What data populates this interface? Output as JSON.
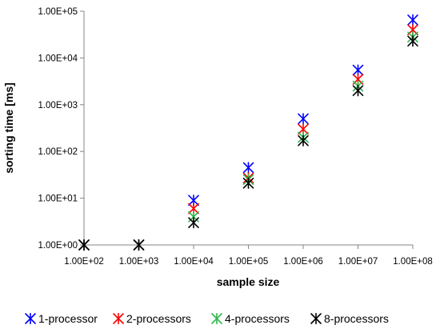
{
  "chart_data": {
    "type": "scatter",
    "xlabel": "sample size",
    "ylabel": "sorting time [ms]",
    "x_scale": "log",
    "y_scale": "log",
    "xlim": [
      100,
      100000000
    ],
    "ylim": [
      1,
      100000
    ],
    "x_ticks": [
      100,
      1000,
      10000,
      100000,
      1000000,
      10000000,
      100000000
    ],
    "x_tick_labels": [
      "1.00E+02",
      "1.00E+03",
      "1.00E+04",
      "1.00E+05",
      "1.00E+06",
      "1.00E+07",
      "1.00E+08"
    ],
    "y_ticks": [
      1,
      10,
      100,
      1000,
      10000,
      100000
    ],
    "y_tick_labels": [
      "1.00E+00",
      "1.00E+01",
      "1.00E+02",
      "1.00E+03",
      "1.00E+04",
      "1.00E+05"
    ],
    "grid": false,
    "legend_position": "bottom",
    "marker": "asterisk",
    "series": [
      {
        "name": "1-processor",
        "color": "#0000ff",
        "x": [
          100,
          1000,
          10000,
          100000,
          1000000,
          10000000,
          100000000
        ],
        "y": [
          1,
          1,
          9,
          45,
          500,
          5500,
          65000
        ]
      },
      {
        "name": "2-processors",
        "color": "#ff0000",
        "x": [
          100,
          1000,
          10000,
          100000,
          1000000,
          10000000,
          100000000
        ],
        "y": [
          1,
          1,
          6,
          27,
          300,
          3500,
          40000
        ]
      },
      {
        "name": "4-processors",
        "color": "#2db84d",
        "x": [
          100,
          1000,
          10000,
          100000,
          1000000,
          10000000,
          100000000
        ],
        "y": [
          1,
          1,
          4,
          25,
          200,
          2500,
          28000
        ]
      },
      {
        "name": "8-processors",
        "color": "#000000",
        "x": [
          100,
          1000,
          10000,
          100000,
          1000000,
          10000000,
          100000000
        ],
        "y": [
          1,
          1,
          3,
          21,
          170,
          2000,
          23000
        ]
      }
    ]
  }
}
